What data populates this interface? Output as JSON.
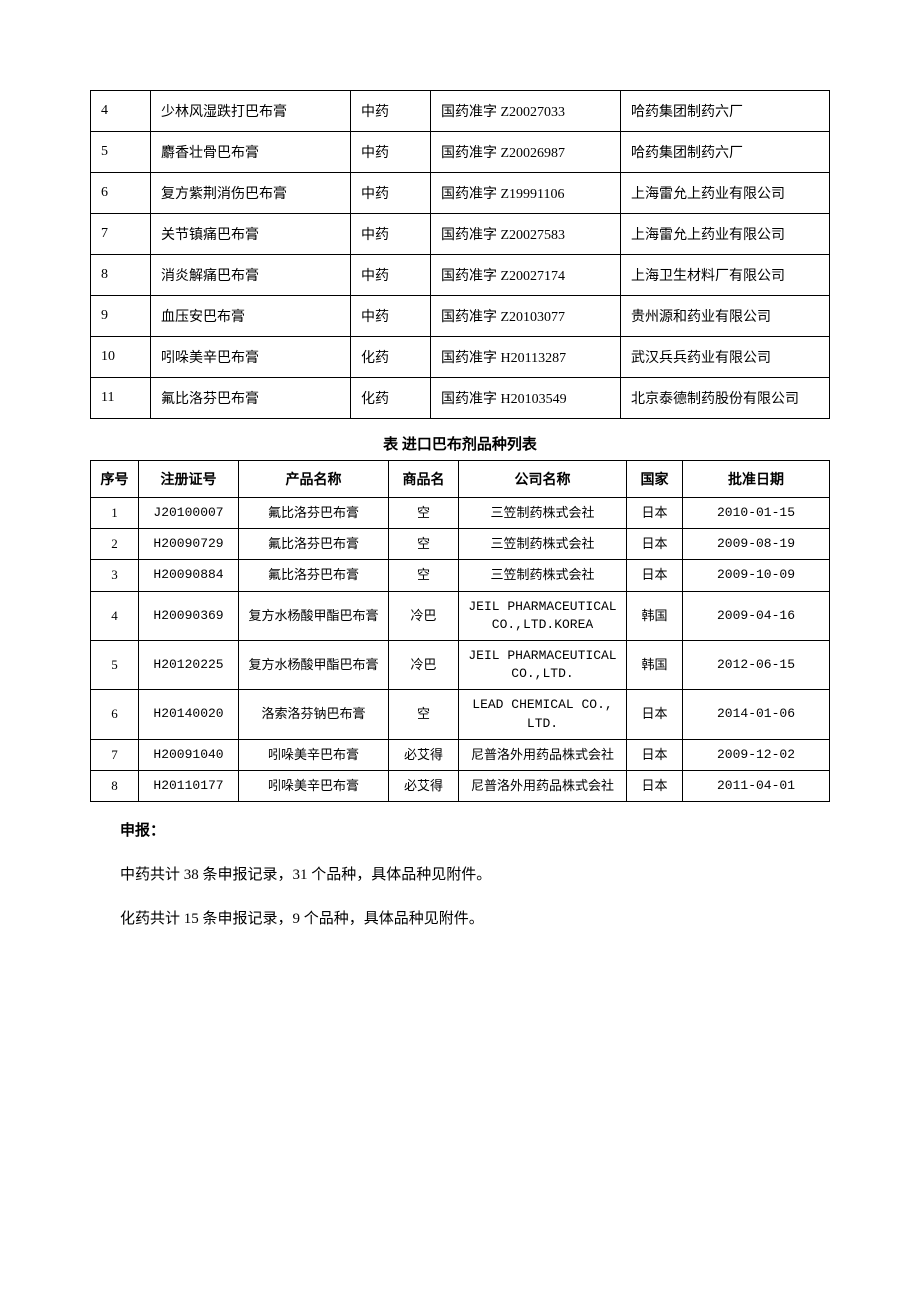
{
  "table1": {
    "col_widths": [
      "60px",
      "200px",
      "80px",
      "190px",
      "auto"
    ],
    "rows": [
      [
        "4",
        "少林风湿跌打巴布膏",
        "中药",
        "国药准字 Z20027033",
        "哈药集团制药六厂"
      ],
      [
        "5",
        "麝香壮骨巴布膏",
        "中药",
        "国药准字 Z20026987",
        "哈药集团制药六厂"
      ],
      [
        "6",
        "复方紫荆消伤巴布膏",
        "中药",
        "国药准字 Z19991106",
        "上海雷允上药业有限公司"
      ],
      [
        "7",
        "关节镇痛巴布膏",
        "中药",
        "国药准字 Z20027583",
        "上海雷允上药业有限公司"
      ],
      [
        "8",
        "消炎解痛巴布膏",
        "中药",
        "国药准字 Z20027174",
        "上海卫生材料厂有限公司"
      ],
      [
        "9",
        "血压安巴布膏",
        "中药",
        "国药准字 Z20103077",
        "贵州源和药业有限公司"
      ],
      [
        "10",
        "吲哚美辛巴布膏",
        "化药",
        "国药准字 H20113287",
        "武汉兵兵药业有限公司"
      ],
      [
        "11",
        "氟比洛芬巴布膏",
        "化药",
        "国药准字 H20103549",
        "北京泰德制药股份有限公司"
      ]
    ]
  },
  "caption2": "表 进口巴布剂品种列表",
  "table2": {
    "col_widths": [
      "48px",
      "100px",
      "150px",
      "70px",
      "168px",
      "56px",
      "auto"
    ],
    "headers": [
      "序号",
      "注册证号",
      "产品名称",
      "商品名",
      "公司名称",
      "国家",
      "批准日期"
    ],
    "rows": [
      [
        "1",
        "J20100007",
        "氟比洛芬巴布膏",
        "空",
        "三笠制药株式会社",
        "日本",
        "2010-01-15"
      ],
      [
        "2",
        "H20090729",
        "氟比洛芬巴布膏",
        "空",
        "三笠制药株式会社",
        "日本",
        "2009-08-19"
      ],
      [
        "3",
        "H20090884",
        "氟比洛芬巴布膏",
        "空",
        "三笠制药株式会社",
        "日本",
        "2009-10-09"
      ],
      [
        "4",
        "H20090369",
        "复方水杨酸甲酯巴布膏",
        "冷巴",
        "JEIL PHARMACEUTICAL CO.,LTD.KOREA",
        "韩国",
        "2009-04-16"
      ],
      [
        "5",
        "H20120225",
        "复方水杨酸甲酯巴布膏",
        "冷巴",
        "JEIL PHARMACEUTICAL CO.,LTD.",
        "韩国",
        "2012-06-15"
      ],
      [
        "6",
        "H20140020",
        "洛索洛芬钠巴布膏",
        "空",
        "LEAD CHEMICAL CO., LTD.",
        "日本",
        "2014-01-06"
      ],
      [
        "7",
        "H20091040",
        "吲哚美辛巴布膏",
        "必艾得",
        "尼普洛外用药品株式会社",
        "日本",
        "2009-12-02"
      ],
      [
        "8",
        "H20110177",
        "吲哚美辛巴布膏",
        "必艾得",
        "尼普洛外用药品株式会社",
        "日本",
        "2011-04-01"
      ]
    ]
  },
  "para_heading": "申报：",
  "para1": "中药共计 38 条申报记录，31 个品种，具体品种见附件。",
  "para2": "化药共计 15 条申报记录，9 个品种，具体品种见附件。"
}
